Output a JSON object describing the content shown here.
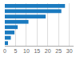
{
  "chart_data": {
    "type": "bar",
    "orientation": "horizontal",
    "categories": [
      null,
      null,
      null,
      null,
      null,
      null,
      null,
      null
    ],
    "values": [
      28.0,
      26.3,
      19.0,
      11.0,
      6.0,
      4.5,
      2.8,
      1.5
    ],
    "color": "#1a7abf",
    "xlim": [
      0,
      32
    ],
    "xticks": [
      0,
      5,
      10,
      15,
      20,
      25,
      30
    ],
    "grid": true,
    "tick_labels": "x"
  }
}
